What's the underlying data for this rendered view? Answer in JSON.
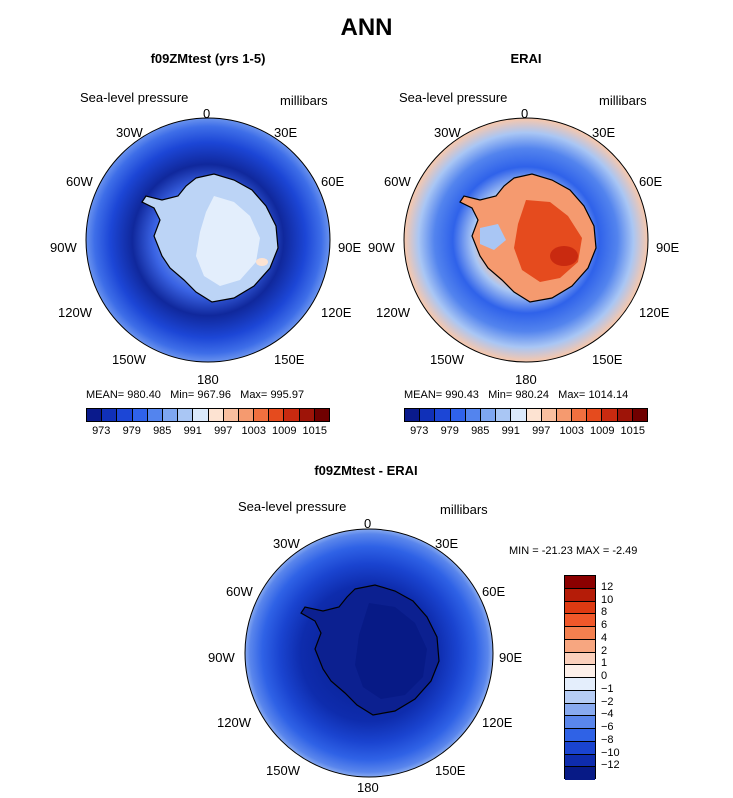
{
  "title": "ANN",
  "panels": {
    "model": {
      "title": "f09ZMtest (yrs 1-5)",
      "variable": "Sea-level pressure",
      "units": "millibars",
      "stats": {
        "mean_label": "MEAN=",
        "mean": "980.40",
        "min_label": "Min=",
        "min": "967.96",
        "max_label": "Max=",
        "max": "995.97"
      }
    },
    "obs": {
      "title": "ERAI",
      "variable": "Sea-level pressure",
      "units": "millibars",
      "stats": {
        "mean_label": "MEAN=",
        "mean": "990.43",
        "min_label": "Min=",
        "min": "980.24",
        "max_label": "Max=",
        "max": "1014.14"
      }
    },
    "diff": {
      "title": "f09ZMtest - ERAI",
      "variable": "Sea-level pressure",
      "units": "millibars",
      "minmax": "MIN = -21.23 MAX =  -2.49"
    }
  },
  "longitudes": {
    "n": "0",
    "e30": "30E",
    "e60": "60E",
    "e90": "90E",
    "e120": "120E",
    "e150": "150E",
    "s": "180",
    "w150": "150W",
    "w120": "120W",
    "w90": "90W",
    "w60": "60W",
    "w30": "30W"
  },
  "colorbar_top": {
    "labels": [
      "973",
      "979",
      "985",
      "991",
      "997",
      "1003",
      "1009",
      "1015"
    ],
    "colors": [
      "#0a1a8c",
      "#1030b8",
      "#1c46d6",
      "#2f62ea",
      "#5384ee",
      "#7ea6f0",
      "#a9c6f4",
      "#dbe9fb",
      "#fde3d2",
      "#f9bf9f",
      "#f59a6f",
      "#f0703f",
      "#e54b1e",
      "#c92a10",
      "#9e1408",
      "#700000"
    ]
  },
  "colorbar_diff": {
    "labels": [
      "12",
      "10",
      "8",
      "6",
      "4",
      "2",
      "1",
      "0",
      "−1",
      "−2",
      "−4",
      "−6",
      "−8",
      "−10",
      "−12"
    ],
    "colors": [
      "#8b0000",
      "#b51c08",
      "#de3a12",
      "#f0582a",
      "#f4804f",
      "#f7a680",
      "#fbd0bc",
      "#fdf0ea",
      "#e4eefc",
      "#b6cdf5",
      "#88aaf0",
      "#5a86ec",
      "#2f62e6",
      "#1a44d0",
      "#0e2cad",
      "#071a86"
    ]
  }
}
